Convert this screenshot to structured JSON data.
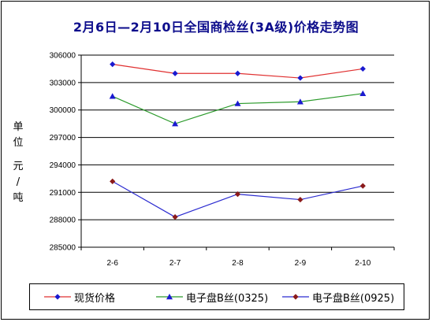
{
  "chart_data": {
    "type": "line",
    "title": "2月6日—2月10日全国商检丝(3A级)价格走势图",
    "ylabel_chars": [
      "单",
      "位",
      "元",
      "/",
      "吨"
    ],
    "xlabel": "",
    "categories": [
      "2-6",
      "2-7",
      "2-8",
      "2-9",
      "2-10"
    ],
    "ylim": [
      285000,
      306000
    ],
    "yticks": [
      "285000",
      "288000",
      "291000",
      "294000",
      "297000",
      "300000",
      "303000",
      "306000"
    ],
    "grid": true,
    "legend_position": "bottom",
    "series": [
      {
        "name": "现货价格",
        "values": [
          305000,
          304000,
          304000,
          303500,
          304500
        ],
        "color": "#e03030",
        "marker": "diamond",
        "marker_color": "#1a1ad0"
      },
      {
        "name": "电子盘B丝(0325)",
        "values": [
          301500,
          298500,
          300700,
          300900,
          301800
        ],
        "color": "#2a9a2a",
        "marker": "triangle",
        "marker_color": "#1a1ad0"
      },
      {
        "name": "电子盘B丝(0925)",
        "values": [
          292200,
          288300,
          290800,
          290200,
          291700
        ],
        "color": "#2a2ad0",
        "marker": "diamond",
        "marker_color": "#8b1a1a"
      }
    ]
  }
}
